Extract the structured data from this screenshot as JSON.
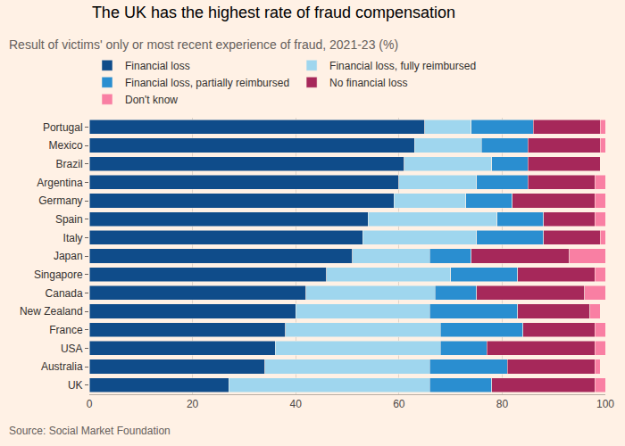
{
  "chart_data": {
    "type": "bar",
    "orientation": "horizontal",
    "stacked": true,
    "title": "The UK has the highest rate of fraud compensation",
    "subtitle": "Result of victims' only or most recent experience of fraud, 2021-23 (%)",
    "source": "Source: Social Market Foundation",
    "legend": "top",
    "grid": true,
    "categories": [
      "Portugal",
      "Mexico",
      "Brazil",
      "Argentina",
      "Germany",
      "Spain",
      "Italy",
      "Japan",
      "Singapore",
      "Canada",
      "New Zealand",
      "France",
      "USA",
      "Australia",
      "UK"
    ],
    "series": [
      {
        "name": "Financial loss",
        "color": "#0f4c8a",
        "values": [
          65,
          63,
          61,
          60,
          59,
          54,
          53,
          51,
          46,
          42,
          40,
          38,
          36,
          34,
          27
        ]
      },
      {
        "name": "Financial loss, fully reimbursed",
        "color": "#9fd6ee",
        "values": [
          9,
          13,
          17,
          15,
          14,
          25,
          22,
          15,
          24,
          25,
          26,
          30,
          32,
          32,
          39
        ]
      },
      {
        "name": "Financial loss, partially reimbursed",
        "color": "#2a8ed0",
        "values": [
          12,
          9,
          7,
          10,
          9,
          9,
          13,
          8,
          13,
          8,
          17,
          16,
          9,
          15,
          12
        ]
      },
      {
        "name": "No financial loss",
        "color": "#a6285a",
        "values": [
          13,
          14,
          14,
          13,
          16,
          10,
          11,
          19,
          15,
          21,
          14,
          14,
          21,
          17,
          20
        ]
      },
      {
        "name": "Don't know",
        "color": "#f97fa3",
        "values": [
          1,
          1,
          0,
          2,
          2,
          2,
          1,
          7,
          2,
          4,
          2,
          2,
          2,
          1,
          2
        ]
      }
    ],
    "xlim": [
      0,
      100
    ],
    "xticks": [
      0,
      20,
      40,
      60,
      80,
      100
    ]
  }
}
